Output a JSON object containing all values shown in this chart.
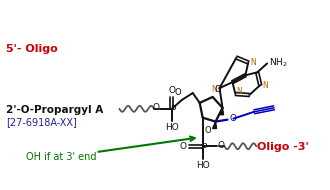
{
  "color_red": "#CC0000",
  "color_green": "#007700",
  "color_blue": "#0000BB",
  "color_orange": "#BB6600",
  "color_black": "#111111",
  "color_gray": "#555555",
  "color_bg": "#FFFFFF",
  "label_5oligo": "5'- Oligo",
  "label_3oligo": "Oligo -3'",
  "label_name": "2'-O-Propargyl A",
  "label_catalog": "[27-6918A-XX]",
  "label_oh": "OH if at 3' end"
}
